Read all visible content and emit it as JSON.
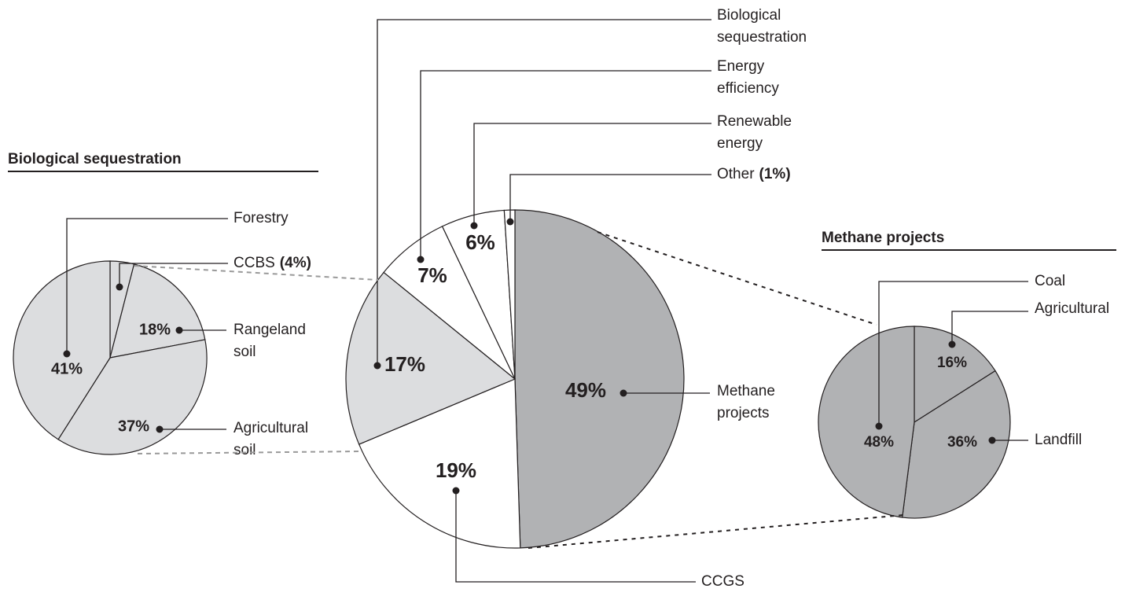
{
  "chart_data": [
    {
      "type": "pie",
      "title": null,
      "categories": [
        "Methane projects",
        "CCGS",
        "Biological sequestration",
        "Energy efficiency",
        "Renewable energy",
        "Other"
      ],
      "values": [
        49,
        19,
        17,
        7,
        6,
        1
      ],
      "value_labels": [
        "49%",
        "19%",
        "17%",
        "7%",
        "6%",
        "(1%)"
      ],
      "colors": [
        "#b1b2b4",
        "#ffffff",
        "#dcdddf",
        "#ffffff",
        "#ffffff",
        "#ffffff"
      ]
    },
    {
      "type": "pie",
      "title": "Biological sequestration",
      "categories": [
        "CCBS",
        "Rangeland soil",
        "Agricultural soil",
        "Forestry"
      ],
      "values": [
        4,
        18,
        37,
        41
      ],
      "value_labels": [
        "(4%)",
        "18%",
        "37%",
        "41%"
      ],
      "colors": [
        "#dcdddf",
        "#dcdddf",
        "#dcdddf",
        "#dcdddf"
      ]
    },
    {
      "type": "pie",
      "title": "Methane projects",
      "categories": [
        "Agricultural",
        "Landfill",
        "Coal"
      ],
      "values": [
        16,
        36,
        48
      ],
      "value_labels": [
        "16%",
        "36%",
        "48%"
      ],
      "colors": [
        "#b1b2b4",
        "#b1b2b4",
        "#b1b2b4"
      ]
    }
  ]
}
